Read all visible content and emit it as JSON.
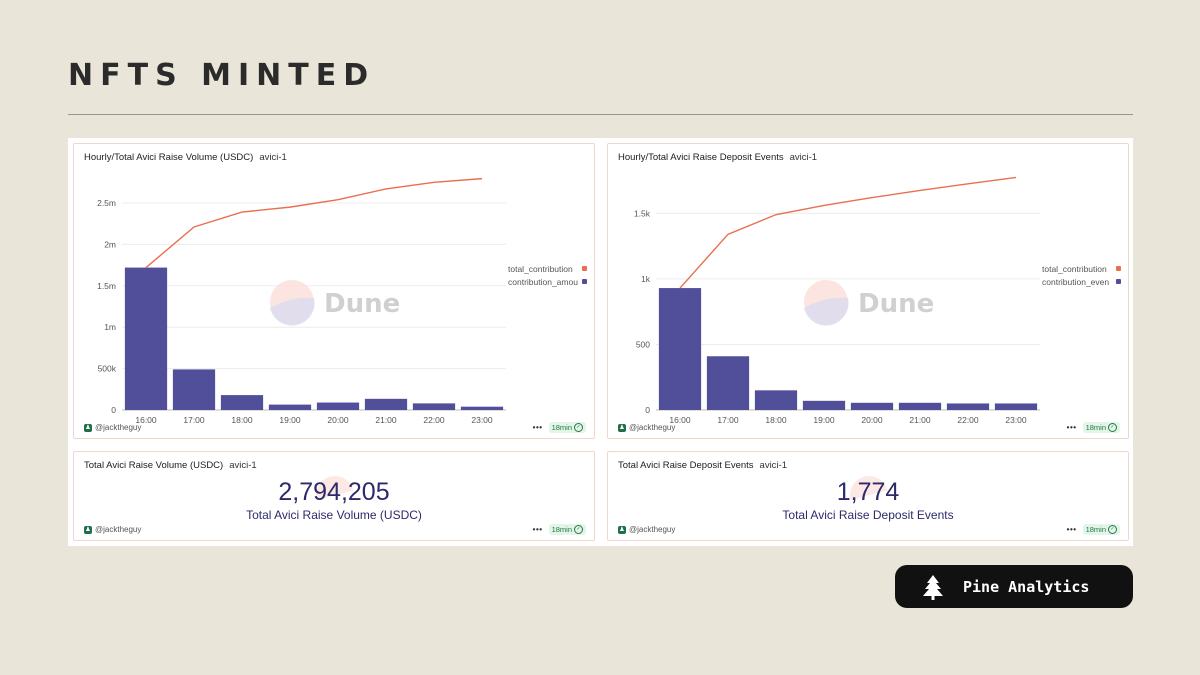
{
  "page": {
    "title": "NFTS MINTED"
  },
  "brand": {
    "name": "Pine Analytics"
  },
  "watermark": {
    "text": "Dune"
  },
  "colors": {
    "bar": "#514f99",
    "line": "#e8704f",
    "background": "#e9e5d9"
  },
  "panels": {
    "volume_chart": {
      "title": "Hourly/Total Avici Raise Volume (USDC)",
      "tag": "avici-1",
      "user": "@jacktheguy",
      "freshness": "18min",
      "more": "•••"
    },
    "events_chart": {
      "title": "Hourly/Total Avici Raise Deposit Events",
      "tag": "avici-1",
      "user": "@jacktheguy",
      "freshness": "18min",
      "more": "•••"
    },
    "volume_counter": {
      "title": "Total Avici Raise Volume (USDC)",
      "tag": "avici-1",
      "value": "2,794,205",
      "label": "Total Avici Raise Volume (USDC)",
      "user": "@jacktheguy",
      "freshness": "18min",
      "more": "•••"
    },
    "events_counter": {
      "title": "Total Avici Raise Deposit Events",
      "tag": "avici-1",
      "value": "1,774",
      "label": "Total Avici Raise Deposit Events",
      "user": "@jacktheguy",
      "freshness": "18min",
      "more": "•••"
    }
  },
  "chart_data": [
    {
      "type": "bar",
      "title": "Hourly/Total Avici Raise Volume (USDC)",
      "categories": [
        "16:00",
        "17:00",
        "18:00",
        "19:00",
        "20:00",
        "21:00",
        "22:00",
        "23:00"
      ],
      "yticks": [
        0,
        500000,
        1000000,
        1500000,
        2000000,
        2500000
      ],
      "ytick_labels": [
        "0",
        "500k",
        "1m",
        "1.5m",
        "2m",
        "2.5m"
      ],
      "ylim": [
        0,
        2850000
      ],
      "series": [
        {
          "name": "total_contribution",
          "kind": "line",
          "values": [
            1720000,
            2210000,
            2390000,
            2450000,
            2540000,
            2670000,
            2750000,
            2794205
          ]
        },
        {
          "name": "contribution_amou",
          "kind": "bar",
          "values": [
            1720000,
            490000,
            180000,
            65000,
            90000,
            135000,
            80000,
            40000
          ]
        }
      ],
      "legend_position": "right",
      "grid": true
    },
    {
      "type": "bar",
      "title": "Hourly/Total Avici Raise Deposit Events",
      "categories": [
        "16:00",
        "17:00",
        "18:00",
        "19:00",
        "20:00",
        "21:00",
        "22:00",
        "23:00"
      ],
      "yticks": [
        0,
        500,
        1000,
        1500
      ],
      "ytick_labels": [
        "0",
        "500",
        "1k",
        "1.5k"
      ],
      "ylim": [
        0,
        1800
      ],
      "series": [
        {
          "name": "total_contribution",
          "kind": "line",
          "values": [
            930,
            1340,
            1490,
            1560,
            1620,
            1675,
            1725,
            1774
          ]
        },
        {
          "name": "contribution_even",
          "kind": "bar",
          "values": [
            930,
            410,
            150,
            70,
            55,
            55,
            50,
            50
          ]
        }
      ],
      "legend_position": "right",
      "grid": true
    }
  ]
}
